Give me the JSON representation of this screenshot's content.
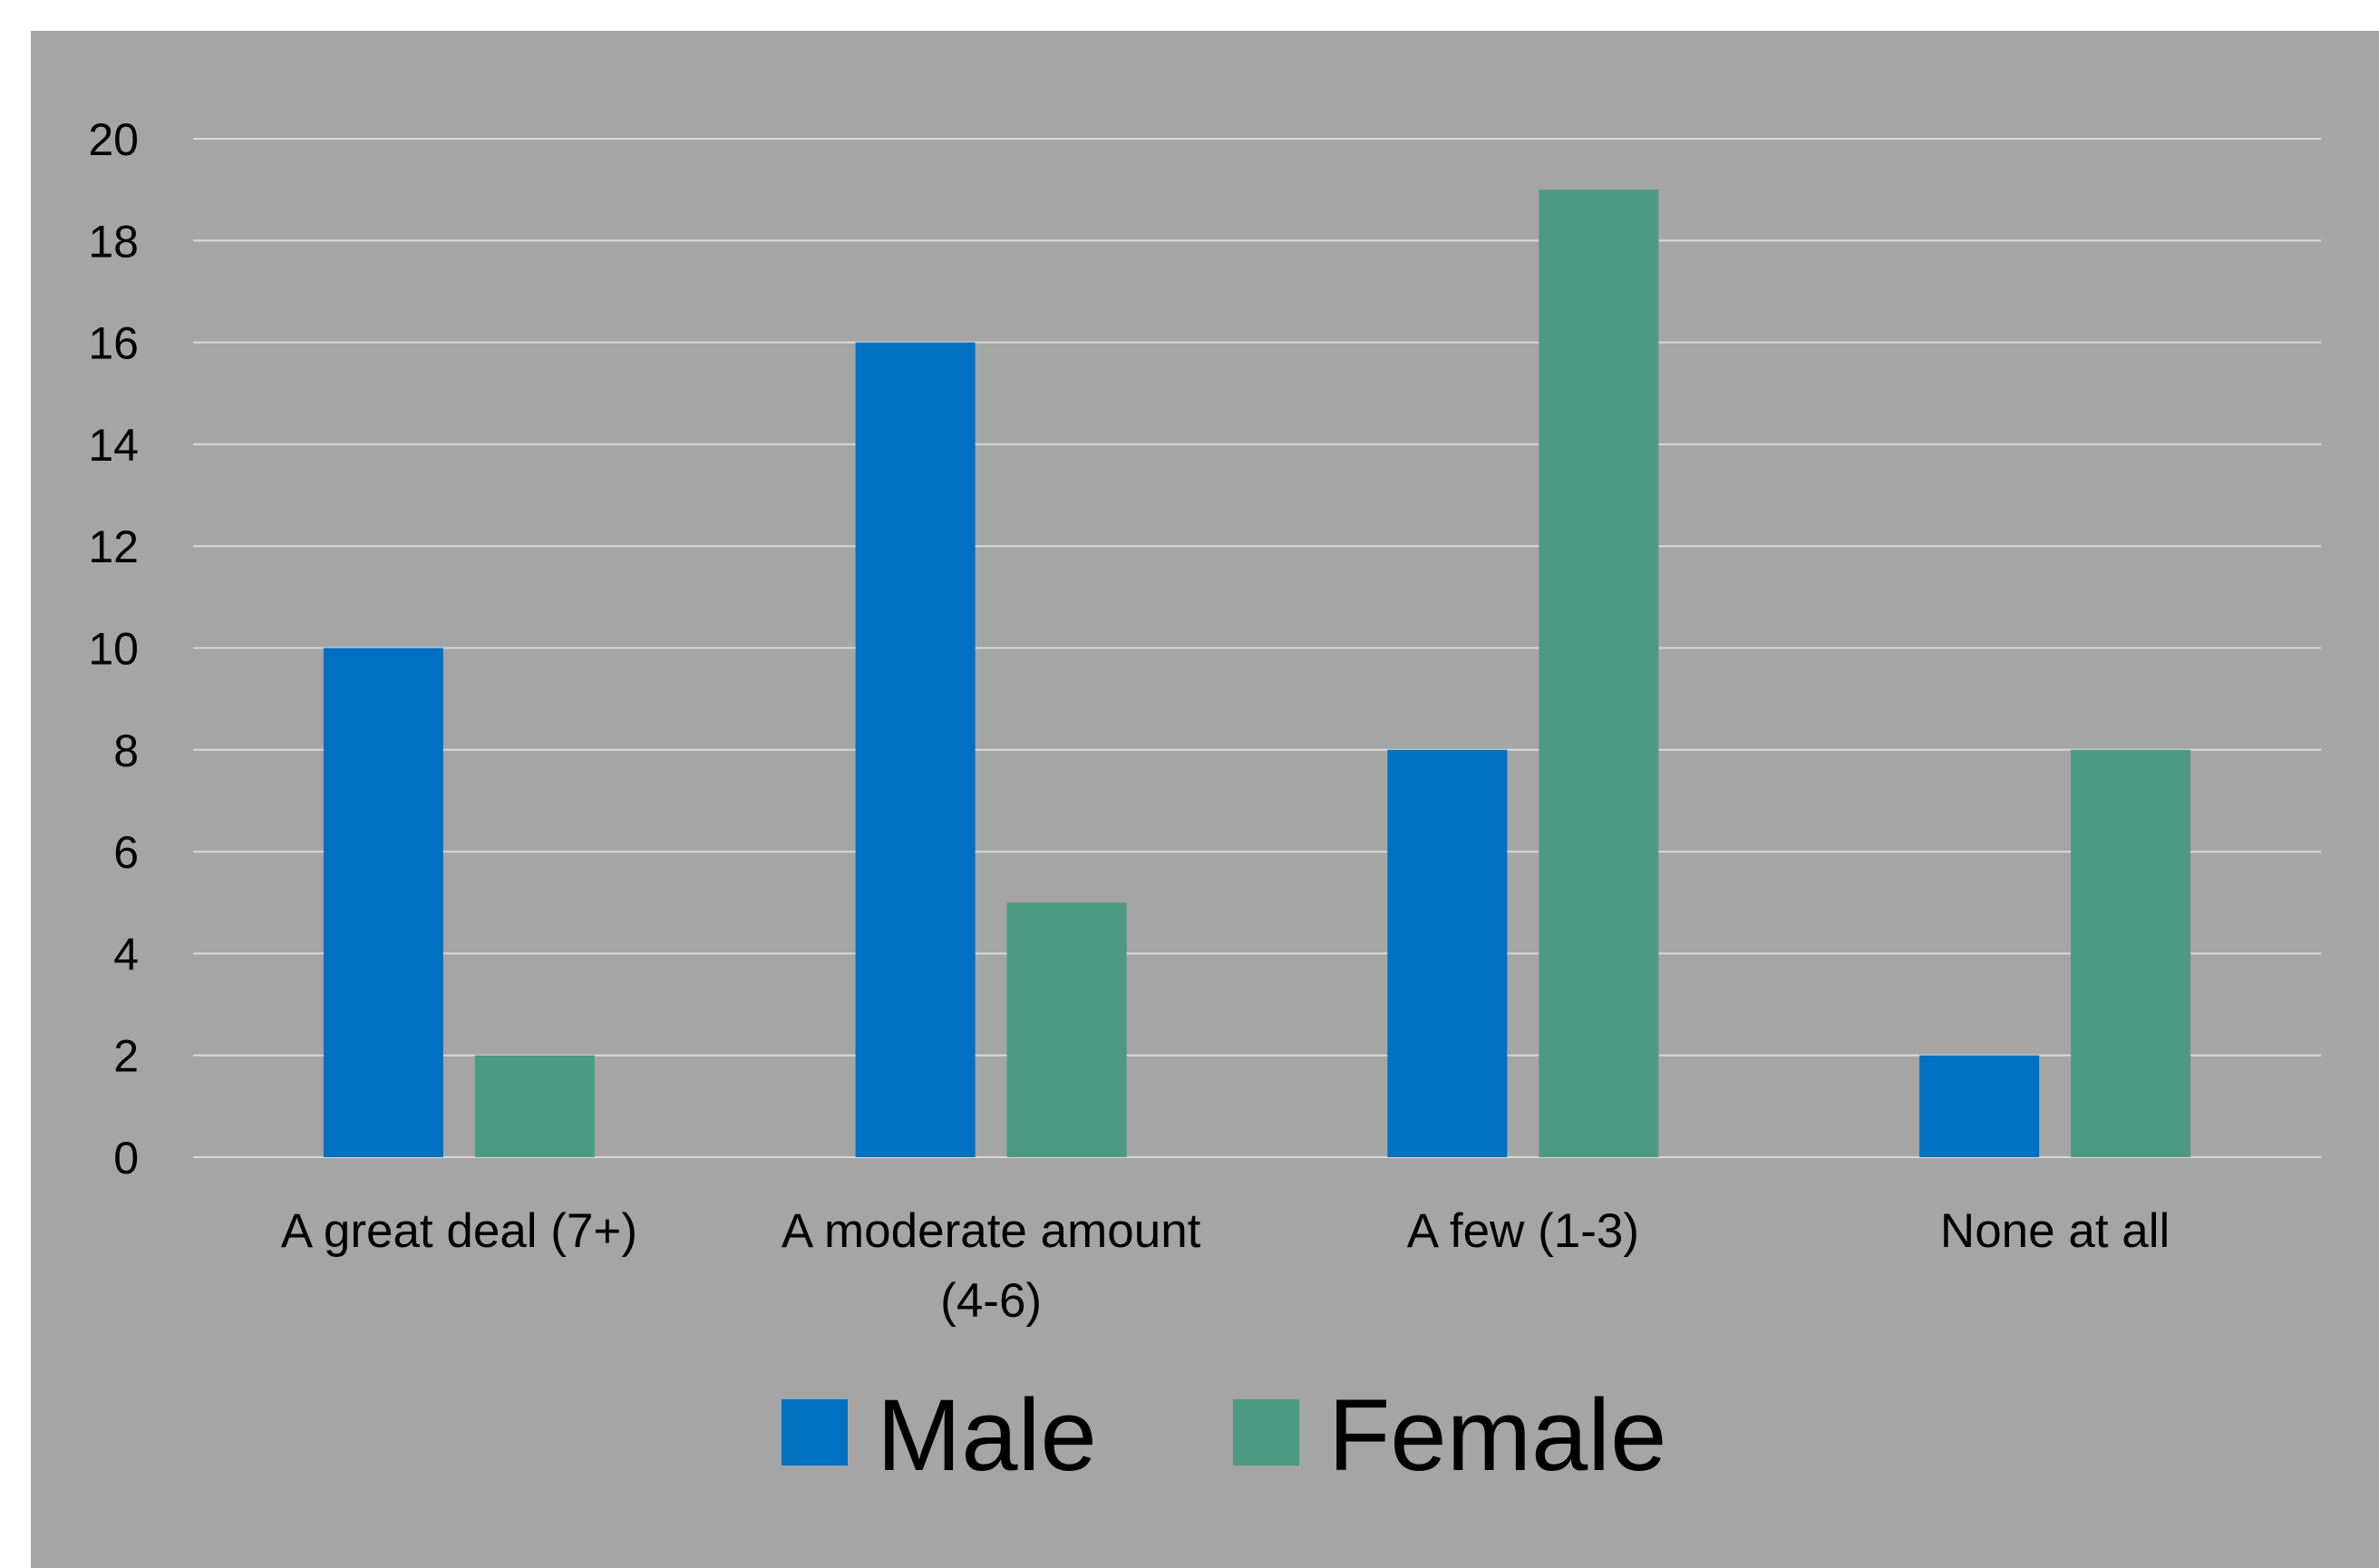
{
  "chart_data": {
    "type": "bar",
    "title": "",
    "xlabel": "",
    "ylabel": "",
    "categories": [
      [
        "A great deal (7+)"
      ],
      [
        "A moderate amount",
        "(4-6)"
      ],
      [
        "A few (1-3)"
      ],
      [
        "None at all"
      ]
    ],
    "series": [
      {
        "name": "Male",
        "color": "#0070c0",
        "values": [
          10,
          16,
          8,
          2
        ]
      },
      {
        "name": "Female",
        "color": "#4c9a82",
        "values": [
          2,
          5,
          19,
          8
        ]
      }
    ],
    "ylim": [
      0,
      20
    ],
    "yticks": [
      0,
      2,
      4,
      6,
      8,
      10,
      12,
      14,
      16,
      18,
      20
    ],
    "grid": true,
    "legend": "bottom",
    "background": "#a5a5a5",
    "gridline_color": "#d9d9d9"
  }
}
